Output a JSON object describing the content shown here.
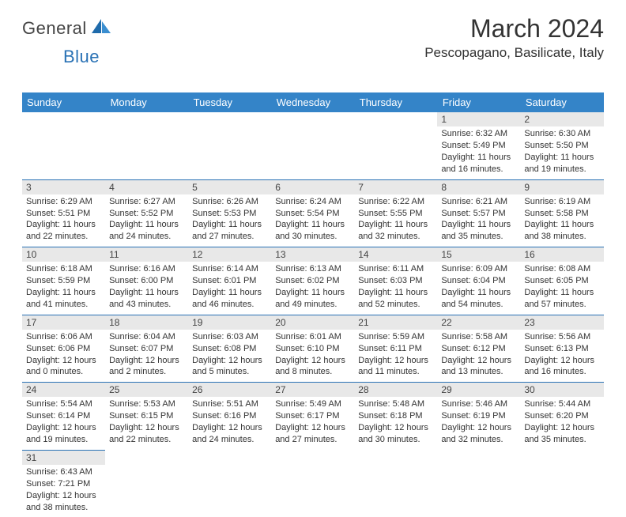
{
  "brand": {
    "text1": "General",
    "text2": "Blue"
  },
  "title": "March 2024",
  "location": "Pescopagano, Basilicate, Italy",
  "colors": {
    "header_bg": "#3484c8",
    "header_text": "#ffffff",
    "rule": "#2a72b5",
    "daynum_bg": "#e8e8e8",
    "text": "#333333",
    "brand_blue": "#2a72b5"
  },
  "daynames": [
    "Sunday",
    "Monday",
    "Tuesday",
    "Wednesday",
    "Thursday",
    "Friday",
    "Saturday"
  ],
  "weeks": [
    [
      null,
      null,
      null,
      null,
      null,
      {
        "n": "1",
        "sunrise": "6:32 AM",
        "sunset": "5:49 PM",
        "daylight": "11 hours and 16 minutes."
      },
      {
        "n": "2",
        "sunrise": "6:30 AM",
        "sunset": "5:50 PM",
        "daylight": "11 hours and 19 minutes."
      }
    ],
    [
      {
        "n": "3",
        "sunrise": "6:29 AM",
        "sunset": "5:51 PM",
        "daylight": "11 hours and 22 minutes."
      },
      {
        "n": "4",
        "sunrise": "6:27 AM",
        "sunset": "5:52 PM",
        "daylight": "11 hours and 24 minutes."
      },
      {
        "n": "5",
        "sunrise": "6:26 AM",
        "sunset": "5:53 PM",
        "daylight": "11 hours and 27 minutes."
      },
      {
        "n": "6",
        "sunrise": "6:24 AM",
        "sunset": "5:54 PM",
        "daylight": "11 hours and 30 minutes."
      },
      {
        "n": "7",
        "sunrise": "6:22 AM",
        "sunset": "5:55 PM",
        "daylight": "11 hours and 32 minutes."
      },
      {
        "n": "8",
        "sunrise": "6:21 AM",
        "sunset": "5:57 PM",
        "daylight": "11 hours and 35 minutes."
      },
      {
        "n": "9",
        "sunrise": "6:19 AM",
        "sunset": "5:58 PM",
        "daylight": "11 hours and 38 minutes."
      }
    ],
    [
      {
        "n": "10",
        "sunrise": "6:18 AM",
        "sunset": "5:59 PM",
        "daylight": "11 hours and 41 minutes."
      },
      {
        "n": "11",
        "sunrise": "6:16 AM",
        "sunset": "6:00 PM",
        "daylight": "11 hours and 43 minutes."
      },
      {
        "n": "12",
        "sunrise": "6:14 AM",
        "sunset": "6:01 PM",
        "daylight": "11 hours and 46 minutes."
      },
      {
        "n": "13",
        "sunrise": "6:13 AM",
        "sunset": "6:02 PM",
        "daylight": "11 hours and 49 minutes."
      },
      {
        "n": "14",
        "sunrise": "6:11 AM",
        "sunset": "6:03 PM",
        "daylight": "11 hours and 52 minutes."
      },
      {
        "n": "15",
        "sunrise": "6:09 AM",
        "sunset": "6:04 PM",
        "daylight": "11 hours and 54 minutes."
      },
      {
        "n": "16",
        "sunrise": "6:08 AM",
        "sunset": "6:05 PM",
        "daylight": "11 hours and 57 minutes."
      }
    ],
    [
      {
        "n": "17",
        "sunrise": "6:06 AM",
        "sunset": "6:06 PM",
        "daylight": "12 hours and 0 minutes."
      },
      {
        "n": "18",
        "sunrise": "6:04 AM",
        "sunset": "6:07 PM",
        "daylight": "12 hours and 2 minutes."
      },
      {
        "n": "19",
        "sunrise": "6:03 AM",
        "sunset": "6:08 PM",
        "daylight": "12 hours and 5 minutes."
      },
      {
        "n": "20",
        "sunrise": "6:01 AM",
        "sunset": "6:10 PM",
        "daylight": "12 hours and 8 minutes."
      },
      {
        "n": "21",
        "sunrise": "5:59 AM",
        "sunset": "6:11 PM",
        "daylight": "12 hours and 11 minutes."
      },
      {
        "n": "22",
        "sunrise": "5:58 AM",
        "sunset": "6:12 PM",
        "daylight": "12 hours and 13 minutes."
      },
      {
        "n": "23",
        "sunrise": "5:56 AM",
        "sunset": "6:13 PM",
        "daylight": "12 hours and 16 minutes."
      }
    ],
    [
      {
        "n": "24",
        "sunrise": "5:54 AM",
        "sunset": "6:14 PM",
        "daylight": "12 hours and 19 minutes."
      },
      {
        "n": "25",
        "sunrise": "5:53 AM",
        "sunset": "6:15 PM",
        "daylight": "12 hours and 22 minutes."
      },
      {
        "n": "26",
        "sunrise": "5:51 AM",
        "sunset": "6:16 PM",
        "daylight": "12 hours and 24 minutes."
      },
      {
        "n": "27",
        "sunrise": "5:49 AM",
        "sunset": "6:17 PM",
        "daylight": "12 hours and 27 minutes."
      },
      {
        "n": "28",
        "sunrise": "5:48 AM",
        "sunset": "6:18 PM",
        "daylight": "12 hours and 30 minutes."
      },
      {
        "n": "29",
        "sunrise": "5:46 AM",
        "sunset": "6:19 PM",
        "daylight": "12 hours and 32 minutes."
      },
      {
        "n": "30",
        "sunrise": "5:44 AM",
        "sunset": "6:20 PM",
        "daylight": "12 hours and 35 minutes."
      }
    ],
    [
      {
        "n": "31",
        "sunrise": "6:43 AM",
        "sunset": "7:21 PM",
        "daylight": "12 hours and 38 minutes."
      },
      null,
      null,
      null,
      null,
      null,
      null
    ]
  ],
  "labels": {
    "sunrise": "Sunrise:",
    "sunset": "Sunset:",
    "daylight": "Daylight:"
  }
}
